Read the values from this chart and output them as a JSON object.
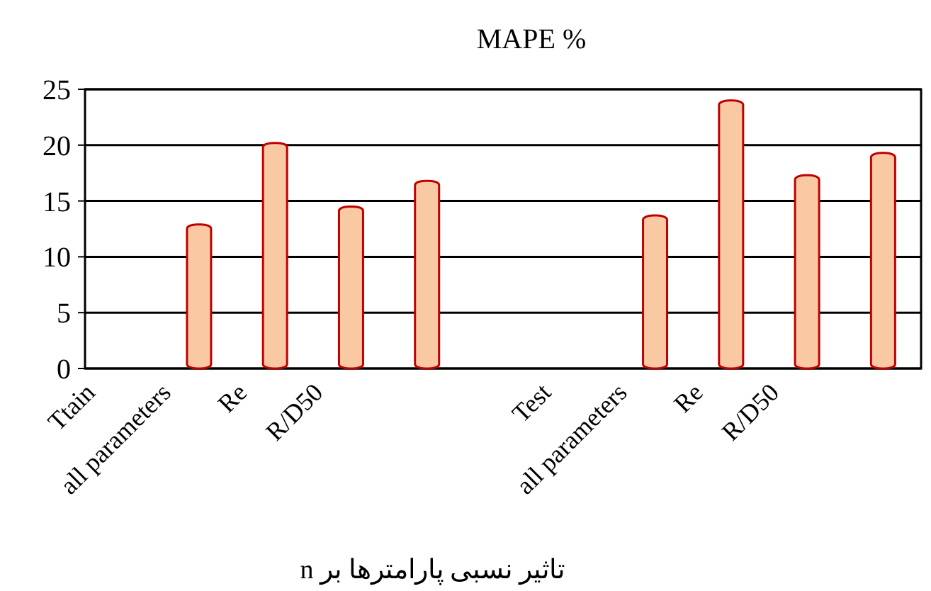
{
  "chart_data": {
    "type": "bar",
    "title": "MAPE %",
    "xlabel": "تاثیر نسبی پارامترها بر n",
    "categories": [
      "Ttain",
      "all parameters",
      "Re",
      "R/D50",
      null,
      null,
      "Test",
      "all parameters",
      "Re",
      "R/D50",
      null
    ],
    "values": [
      null,
      12.9,
      20.2,
      14.5,
      16.8,
      null,
      null,
      13.7,
      24.0,
      17.3,
      19.3
    ],
    "color": "#f8c9a2",
    "ylim": [
      0,
      25
    ],
    "yticks": [
      0,
      5,
      10,
      15,
      20,
      25
    ],
    "grid": "y"
  }
}
